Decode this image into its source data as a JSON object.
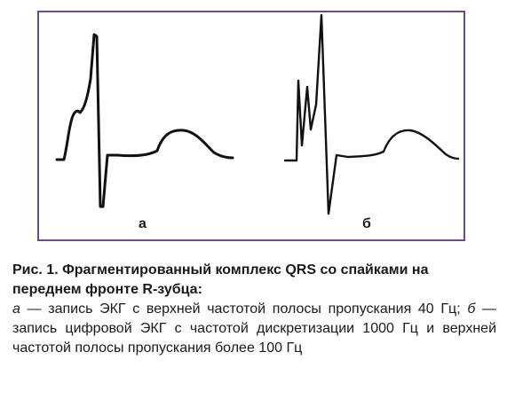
{
  "figure": {
    "panel_a_label": "а",
    "panel_b_label": "б"
  },
  "caption": {
    "title": "Рис. 1. Фрагментированный комплекс QRS со спайками на переднем фронте R-зубца:",
    "part_a_letter": "а",
    "part_a_text": " — запись ЭКГ с верхней частотой полосы пропускания 40 Гц; ",
    "part_b_letter": "б",
    "part_b_text": " — запись цифровой ЭКГ с частотой дискретизации 1000 Гц и верхней частотой полосы пропускания более 100 Гц"
  },
  "colors": {
    "frame": "#6a4b8c",
    "trace": "#111111"
  }
}
